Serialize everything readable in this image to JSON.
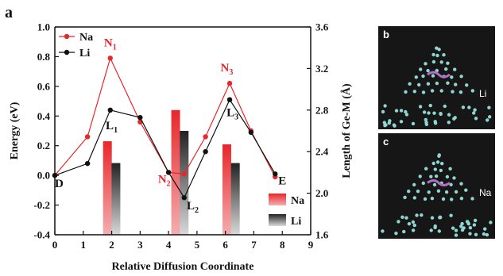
{
  "figure": {
    "panel_label": "a"
  },
  "chart_data": {
    "type": "line",
    "xlabel": "Relative Diffusion Coordinate",
    "ylabel": "Energy (eV)",
    "y2label": "Length of Ge-M (Å)",
    "xlim": [
      0,
      9
    ],
    "ylim": [
      -0.4,
      1.0
    ],
    "y2lim": [
      1.6,
      3.6
    ],
    "xticks": [
      "0",
      "1",
      "2",
      "3",
      "4",
      "5",
      "6",
      "7",
      "8",
      "9"
    ],
    "yticks": [
      "-0.4",
      "-0.2",
      "0.0",
      "0.2",
      "0.4",
      "0.6",
      "0.8",
      "1.0"
    ],
    "y2ticks": [
      "1.6",
      "2.0",
      "2.4",
      "2.8",
      "3.2",
      "3.6"
    ],
    "grid": false,
    "legend_position": "top-left",
    "series": [
      {
        "name": "Na",
        "color": "#e8262b",
        "x": [
          0,
          1.15,
          1.95,
          3.0,
          4.0,
          4.55,
          5.3,
          6.15,
          6.9,
          7.75
        ],
        "y": [
          0.0,
          0.26,
          0.79,
          0.36,
          0.02,
          0.01,
          0.26,
          0.62,
          0.3,
          -0.01
        ]
      },
      {
        "name": "Li",
        "color": "#111111",
        "x": [
          0,
          1.15,
          1.95,
          3.0,
          4.0,
          4.55,
          5.3,
          6.15,
          6.9,
          7.75
        ],
        "y": [
          0.0,
          0.08,
          0.44,
          0.39,
          0.02,
          -0.15,
          0.16,
          0.51,
          0.29,
          0.01
        ]
      }
    ],
    "bars": {
      "axis": "right",
      "categories": [
        "L1/N1",
        "L2/N2",
        "L3/N3"
      ],
      "series": [
        {
          "name": "Na",
          "color": "#e8262b",
          "x": [
            1.85,
            4.25,
            6.05
          ],
          "values": [
            2.5,
            2.8,
            2.47
          ]
        },
        {
          "name": "Li",
          "color": "#555555",
          "x": [
            2.15,
            4.55,
            6.35
          ],
          "values": [
            2.29,
            2.6,
            2.29
          ]
        }
      ]
    },
    "annotations": [
      {
        "text": "N1",
        "x": 1.95,
        "y": 0.87,
        "color": "#e8262b"
      },
      {
        "text": "N2",
        "x": 3.85,
        "y": -0.05,
        "color": "#e8262b"
      },
      {
        "text": "N3",
        "x": 6.05,
        "y": 0.7,
        "color": "#e8262b"
      },
      {
        "text": "L1",
        "x": 2.0,
        "y": 0.31,
        "color": "#111111"
      },
      {
        "text": "L2",
        "x": 4.85,
        "y": -0.23,
        "color": "#111111"
      },
      {
        "text": "L3",
        "x": 6.25,
        "y": 0.4,
        "color": "#111111"
      },
      {
        "text": "D",
        "x": 0.15,
        "y": -0.08,
        "color": "#111111"
      },
      {
        "text": "E",
        "x": 8.0,
        "y": -0.06,
        "color": "#111111"
      }
    ]
  },
  "panels": [
    {
      "label": "b",
      "tag": "Li"
    },
    {
      "label": "c",
      "tag": "Na"
    }
  ]
}
